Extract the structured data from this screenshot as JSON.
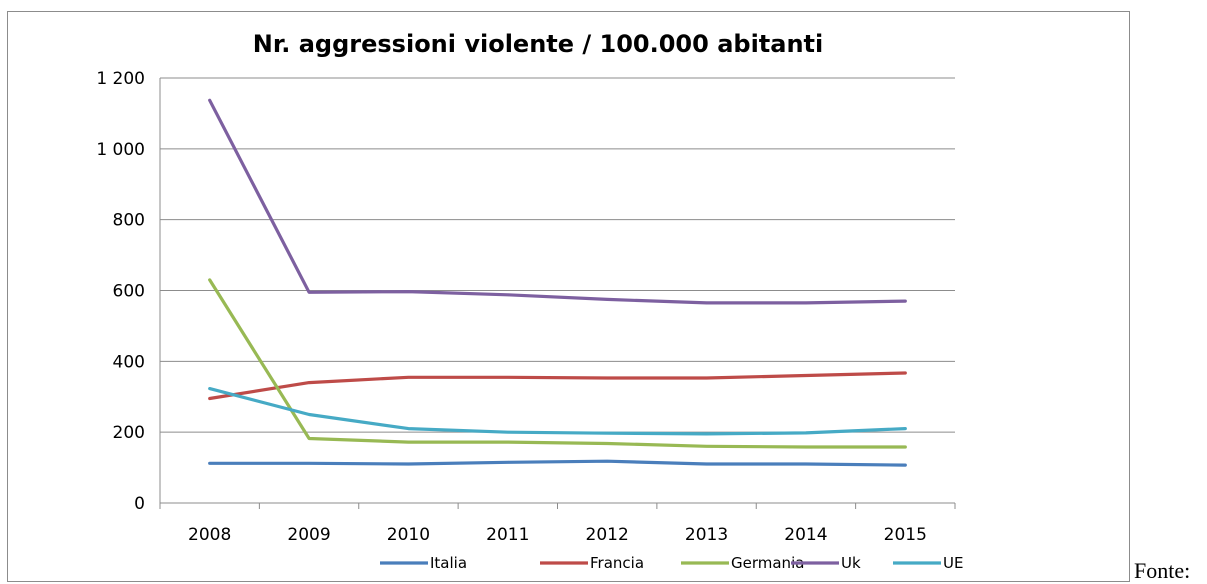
{
  "trailing_text": "Fonte:",
  "chart_data": {
    "type": "line",
    "title": "Nr. aggressioni violente / 100.000 abitanti",
    "xlabel": "",
    "ylabel": "",
    "categories": [
      "2008",
      "2009",
      "2010",
      "2011",
      "2012",
      "2013",
      "2014",
      "2015"
    ],
    "ylim": [
      0,
      1200
    ],
    "yticks": [
      0,
      200,
      400,
      600,
      800,
      1000,
      1200
    ],
    "ytick_labels": [
      "0",
      "200",
      "400",
      "600",
      "800",
      "1 000",
      "1 200"
    ],
    "grid": true,
    "legend_position": "bottom",
    "series": [
      {
        "name": "Italia",
        "color": "#4a7ebb",
        "values": [
          112,
          112,
          110,
          115,
          118,
          110,
          110,
          107
        ]
      },
      {
        "name": "Francia",
        "color": "#be4b48",
        "values": [
          295,
          340,
          355,
          355,
          353,
          353,
          360,
          367
        ]
      },
      {
        "name": "Germania",
        "color": "#98b954",
        "values": [
          630,
          182,
          172,
          172,
          168,
          160,
          158,
          158
        ]
      },
      {
        "name": "Uk",
        "color": "#7d60a0",
        "values": [
          1137,
          595,
          597,
          588,
          575,
          565,
          565,
          570
        ]
      },
      {
        "name": "UE",
        "color": "#46aac5",
        "values": [
          323,
          250,
          210,
          200,
          197,
          195,
          198,
          210
        ]
      }
    ]
  }
}
